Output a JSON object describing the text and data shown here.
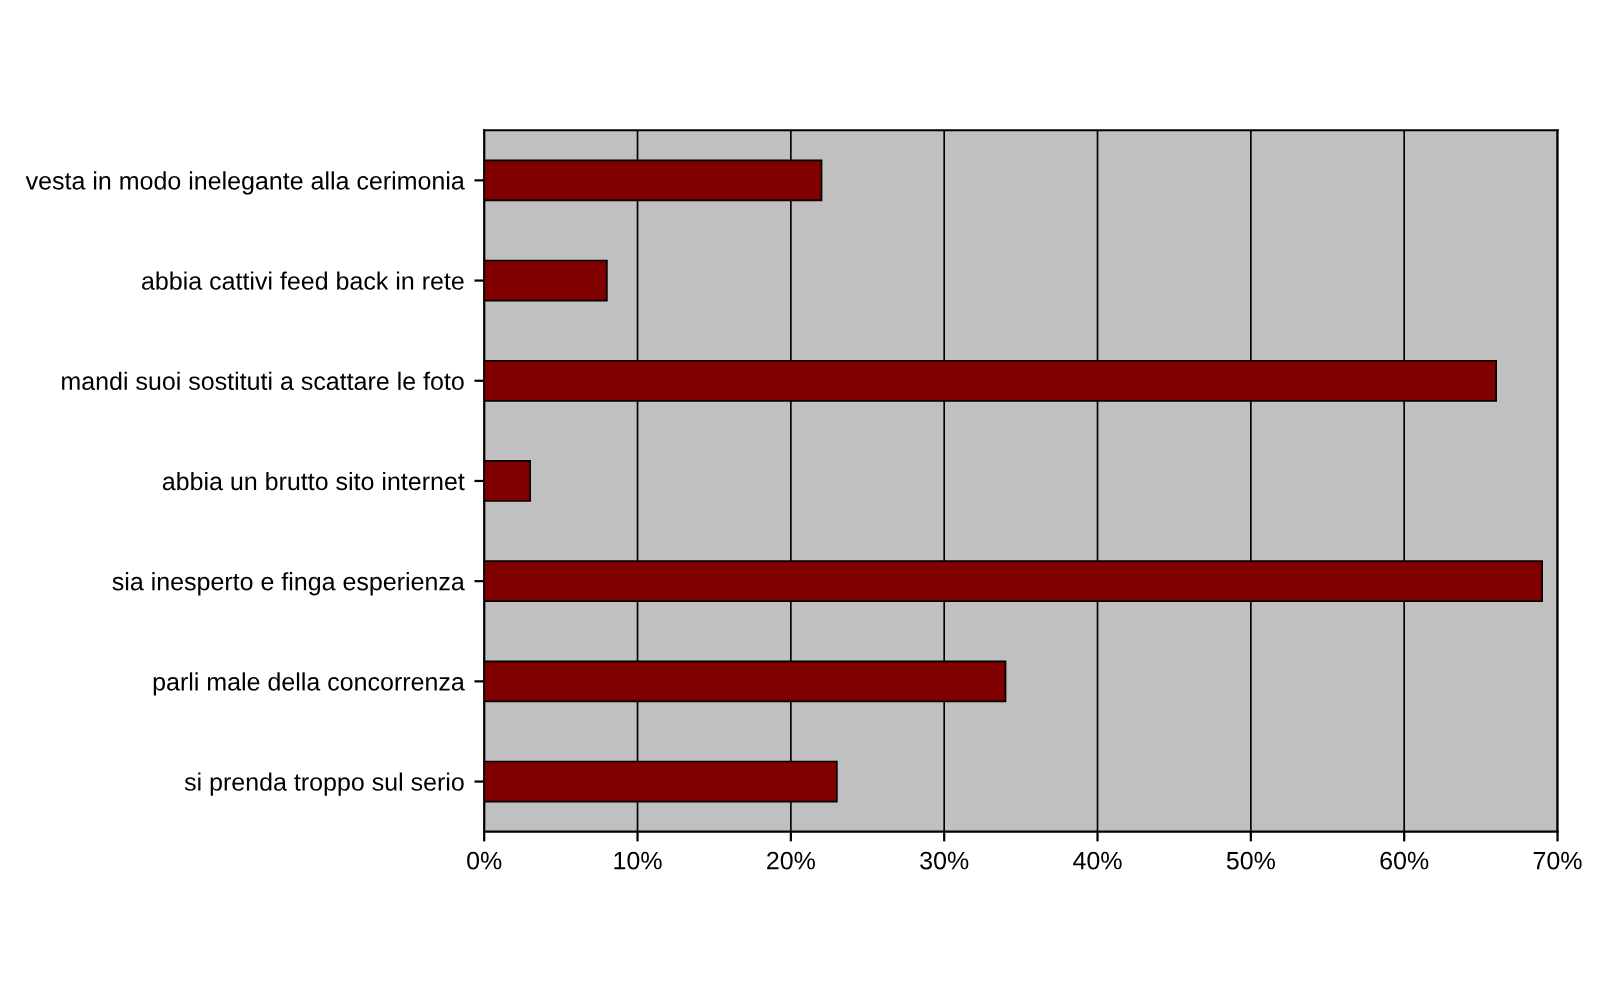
{
  "chart_data": {
    "type": "bar",
    "orientation": "horizontal",
    "categories": [
      "vesta in modo inelegante alla cerimonia",
      "abbia cattivi feed back in rete",
      "mandi suoi sostituti a scattare le foto",
      "abbia un brutto sito internet",
      "sia inesperto e finga esperienza",
      "parli male della concorrenza",
      "si prenda troppo sul serio"
    ],
    "values": [
      22,
      8,
      66,
      3,
      69,
      34,
      23
    ],
    "color": "#800000",
    "xlim": [
      0,
      70
    ],
    "xticks": [
      {
        "value": 0,
        "label": "0%"
      },
      {
        "value": 10,
        "label": "10%"
      },
      {
        "value": 20,
        "label": "20%"
      },
      {
        "value": 30,
        "label": "30%"
      },
      {
        "value": 40,
        "label": "40%"
      },
      {
        "value": 50,
        "label": "50%"
      },
      {
        "value": 60,
        "label": "60%"
      },
      {
        "value": 70,
        "label": "70%"
      }
    ],
    "grid": "x",
    "legend": false
  }
}
